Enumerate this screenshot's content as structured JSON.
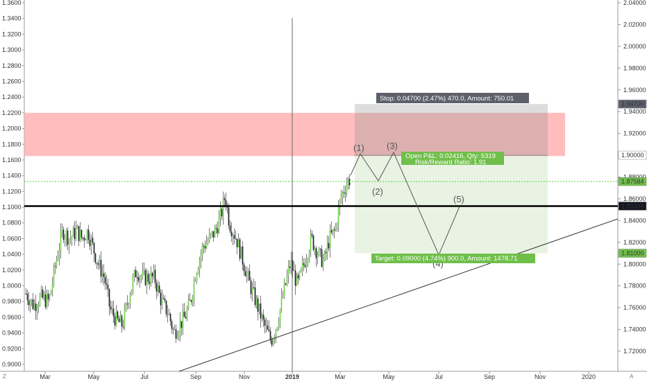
{
  "chart_data": {
    "type": "candlestick",
    "left_axis": {
      "ticks": [
        0.9,
        0.92,
        0.94,
        0.96,
        0.98,
        1.0,
        1.02,
        1.04,
        1.06,
        1.08,
        1.1,
        1.12,
        1.14,
        1.16,
        1.18,
        1.2,
        1.22,
        1.24,
        1.26,
        1.28,
        1.3,
        1.32,
        1.34,
        1.36
      ],
      "labels": [
        "0.9000",
        "0.9200",
        "0.9400",
        "0.9600",
        "0.9800",
        "1.0000",
        "1.0200",
        "1.0400",
        "1.0600",
        "1.0800",
        "1.1000",
        "1.1200",
        "1.1400",
        "1.1600",
        "1.1800",
        "1.2000",
        "1.2200",
        "1.2400",
        "1.2600",
        "1.2800",
        "1.3000",
        "1.3200",
        "1.3400",
        "1.3600"
      ],
      "ylim": [
        0.895,
        1.365
      ]
    },
    "right_axis": {
      "ticks": [
        1.72,
        1.74,
        1.76,
        1.78,
        1.8,
        1.82,
        1.84,
        1.86,
        1.88,
        1.9,
        1.92,
        1.94,
        1.96,
        1.98,
        2.0,
        2.02,
        2.04
      ],
      "labels": [
        "1.72000",
        "1.74000",
        "1.76000",
        "1.78000",
        "1.80000",
        "1.82000",
        "1.84000",
        "1.86000",
        "1.88000",
        "1.90000",
        "1.92000",
        "1.94000",
        "1.96000",
        "1.98000",
        "2.00000",
        "2.02000",
        "2.04000"
      ],
      "ylim": [
        1.705,
        2.045
      ]
    },
    "x_axis_labels": [
      "Mar",
      "May",
      "Jul",
      "Sep",
      "Nov",
      "2019",
      "Mar",
      "May",
      "Jul",
      "Sep",
      "Nov",
      "2020"
    ],
    "price_tags": [
      {
        "value": 1.947,
        "label": "1.94700",
        "color": "#5d606b"
      },
      {
        "value": 1.9,
        "label": "1.90000",
        "color": "#ffffff",
        "text_color": "#131722"
      },
      {
        "value": 1.87584,
        "label": "1.87584",
        "color": "#6fbf4a"
      },
      {
        "value": 1.8533,
        "label": "1.85330",
        "color": "#131722"
      },
      {
        "value": 1.81,
        "label": "1.81000",
        "color": "#6fbf4a"
      }
    ],
    "resistance_zone": {
      "from": 1.165,
      "to": 1.22,
      "color": "#ffb2b2"
    },
    "horizontal_level": {
      "value": 1.8533
    },
    "stop_label": "Stop: 0.04700 (2.47%) 470.0, Amount: 750.01",
    "pnl_label": [
      "Open P&L: 0.02416, Qty: 5319",
      "Risk/Reward Ratio: 1.91"
    ],
    "target_label": "Target: 0.09000 (4.74%) 900.0, Amount: 1478.71",
    "wave_labels": [
      "(1)",
      "(2)",
      "(3)",
      "(4)",
      "(5)"
    ],
    "colors": {
      "up": "#6fcf4a",
      "down": "#131722",
      "stop_zone": "rgba(150,150,150,0.32)",
      "target_zone": "rgba(120,180,80,0.16)"
    },
    "corner_left": "Z",
    "corner_right": "A"
  }
}
